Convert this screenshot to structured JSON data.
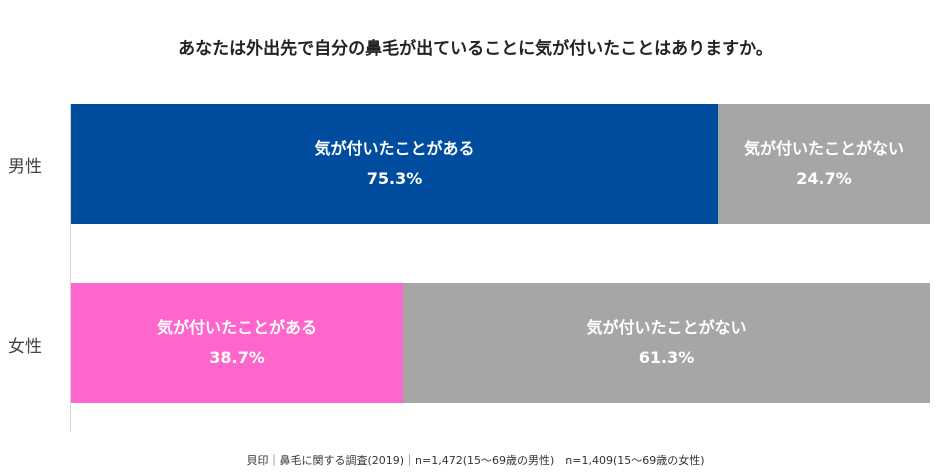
{
  "chart_data": {
    "type": "bar",
    "orientation": "horizontal",
    "stacked": true,
    "title": "あなたは外出先で自分の鼻毛が出ていることに気が付いたことはありますか。",
    "categories": [
      "男性",
      "女性"
    ],
    "series": [
      {
        "name": "気が付いたことがある",
        "values": [
          75.3,
          38.7
        ],
        "value_labels": [
          "75.3%",
          "38.7%"
        ],
        "colors": [
          "#004da0",
          "#ff66cc"
        ]
      },
      {
        "name": "気が付いたことがない",
        "values": [
          24.7,
          61.3
        ],
        "value_labels": [
          "24.7%",
          "61.3%"
        ],
        "colors": [
          "#a6a6a6",
          "#a6a6a6"
        ]
      }
    ],
    "xlim": [
      0,
      100
    ],
    "grid": false,
    "legend": "none",
    "source": "貝印｜鼻毛に関する調査(2019)｜n=1,472(15～69歳の男性)　n=1,409(15～69歳の女性)"
  }
}
